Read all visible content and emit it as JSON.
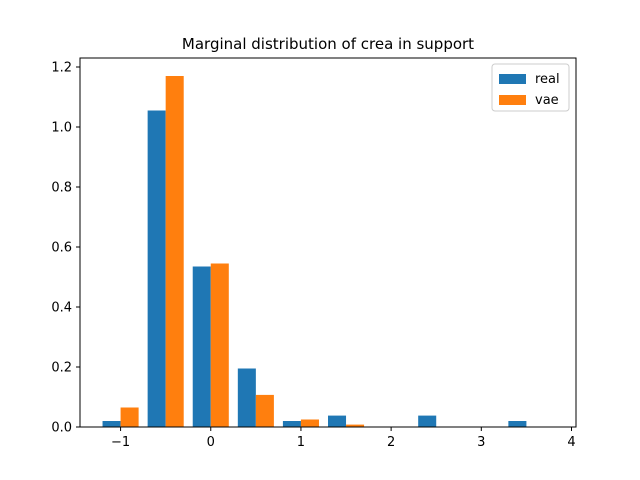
{
  "chart_data": {
    "type": "bar",
    "title": "Marginal distribution of crea in support",
    "xlabel": "",
    "ylabel": "",
    "xlim": [
      -1.45,
      4.05
    ],
    "ylim": [
      0,
      1.23
    ],
    "xticks": [
      -1,
      0,
      1,
      2,
      3,
      4
    ],
    "xtick_labels": [
      "−1",
      "0",
      "1",
      "2",
      "3",
      "4"
    ],
    "yticks": [
      0.0,
      0.2,
      0.4,
      0.6,
      0.8,
      1.0,
      1.2
    ],
    "ytick_labels": [
      "0.0",
      "0.2",
      "0.4",
      "0.6",
      "0.8",
      "1.0",
      "1.2"
    ],
    "bar_width": 0.2,
    "bin_centers": [
      -1.0,
      -0.5,
      0.0,
      0.5,
      1.0,
      1.5,
      2.0,
      2.5,
      3.0,
      3.5
    ],
    "series": [
      {
        "name": "real",
        "color": "#1f77b4",
        "offset": -0.1,
        "values": [
          0.02,
          1.055,
          0.535,
          0.195,
          0.02,
          0.038,
          0.0,
          0.038,
          0.0,
          0.02
        ]
      },
      {
        "name": "vae",
        "color": "#ff7f0e",
        "offset": 0.1,
        "values": [
          0.065,
          1.17,
          0.545,
          0.107,
          0.025,
          0.008,
          0.0,
          0.0,
          0.0,
          0.0
        ]
      }
    ],
    "legend": {
      "position": "top-right",
      "entries": [
        "real",
        "vae"
      ]
    },
    "grid": false
  }
}
